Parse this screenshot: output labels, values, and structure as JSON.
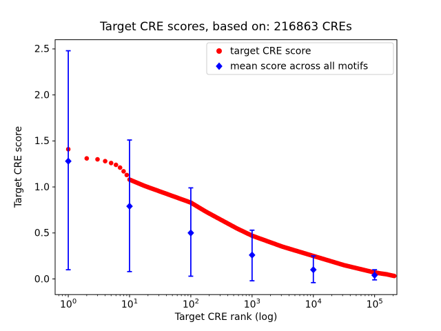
{
  "chart_data": {
    "type": "scatter",
    "title": "Target CRE scores, based on: 216863 CREs",
    "xlabel": "Target CRE rank (log)",
    "ylabel": "Target CRE score",
    "x_scale": "log",
    "xlim": [
      0.61,
      231000
    ],
    "ylim": [
      -0.17,
      2.6
    ],
    "x_tick_exponents": [
      0,
      1,
      2,
      3,
      4,
      5
    ],
    "y_ticks": [
      0.0,
      0.5,
      1.0,
      1.5,
      2.0,
      2.5
    ],
    "grid": false,
    "legend_position": "upper right",
    "series": [
      {
        "name": "target CRE score",
        "type": "scatter",
        "marker": "circle",
        "color": "#ff0000",
        "head_points": [
          [
            1,
            1.41
          ],
          [
            2,
            1.31
          ],
          [
            3,
            1.3
          ],
          [
            4,
            1.28
          ],
          [
            5,
            1.26
          ],
          [
            6,
            1.24
          ],
          [
            7,
            1.21
          ],
          [
            8,
            1.17
          ],
          [
            9,
            1.13
          ]
        ],
        "curve_points_log10": [
          [
            1.0,
            1.08
          ],
          [
            1.25,
            1.01
          ],
          [
            1.5,
            0.95
          ],
          [
            1.75,
            0.89
          ],
          [
            2.0,
            0.83
          ],
          [
            2.25,
            0.73
          ],
          [
            2.5,
            0.64
          ],
          [
            2.75,
            0.55
          ],
          [
            3.0,
            0.47
          ],
          [
            3.25,
            0.41
          ],
          [
            3.5,
            0.35
          ],
          [
            3.75,
            0.3
          ],
          [
            4.0,
            0.25
          ],
          [
            4.25,
            0.2
          ],
          [
            4.5,
            0.15
          ],
          [
            4.75,
            0.11
          ],
          [
            5.0,
            0.07
          ],
          [
            5.2,
            0.05
          ],
          [
            5.336,
            0.03
          ]
        ]
      },
      {
        "name": "mean score across all motifs",
        "type": "errorbar",
        "marker": "diamond",
        "color": "#0000ff",
        "points": [
          {
            "x": 1,
            "y": 1.28,
            "lo": 0.1,
            "hi": 2.48
          },
          {
            "x": 10,
            "y": 0.79,
            "lo": 0.08,
            "hi": 1.51
          },
          {
            "x": 100,
            "y": 0.5,
            "lo": 0.03,
            "hi": 0.99
          },
          {
            "x": 1000,
            "y": 0.26,
            "lo": -0.02,
            "hi": 0.53
          },
          {
            "x": 10000,
            "y": 0.1,
            "lo": -0.04,
            "hi": 0.25
          },
          {
            "x": 100000,
            "y": 0.04,
            "lo": -0.01,
            "hi": 0.1
          }
        ]
      }
    ]
  }
}
